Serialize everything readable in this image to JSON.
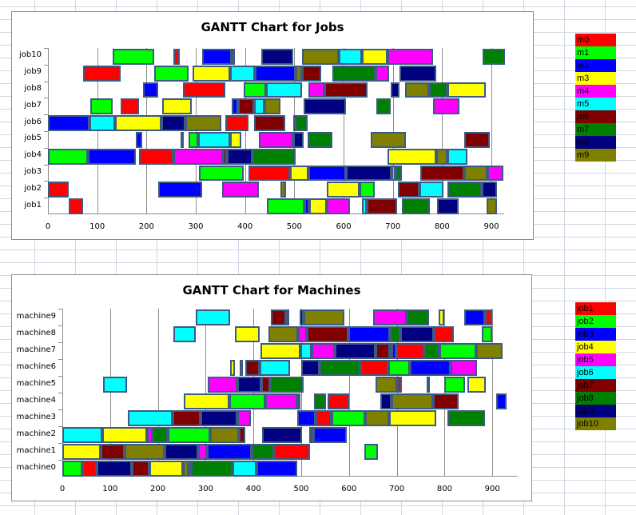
{
  "colors": {
    "c0": "#ff0000",
    "c1": "#00ff00",
    "c2": "#0000ff",
    "c3": "#ffff00",
    "c4": "#ff00ff",
    "c5": "#00ffff",
    "c6": "#800000",
    "c7": "#008000",
    "c8": "#000080",
    "c9": "#808000"
  },
  "legends": {
    "machines": [
      "m0",
      "m1",
      "m2",
      "m3",
      "m4",
      "m5",
      "m6",
      "m7",
      "m8",
      "m9"
    ],
    "jobs": [
      "job1",
      "job2",
      "job3",
      "job4",
      "job5",
      "job6",
      "job7",
      "job8",
      "job9",
      "job10"
    ]
  },
  "chart_data": [
    {
      "type": "gantt",
      "title": "GANTT Chart for Jobs",
      "xlabel": "",
      "ylabel": "",
      "xlim": [
        0,
        950
      ],
      "xticks": [
        0,
        100,
        200,
        300,
        400,
        500,
        600,
        700,
        800,
        900
      ],
      "categories": [
        "job1",
        "job2",
        "job3",
        "job4",
        "job5",
        "job6",
        "job7",
        "job8",
        "job9",
        "job10"
      ],
      "legend": [
        "m0",
        "m1",
        "m2",
        "m3",
        "m4",
        "m5",
        "m6",
        "m7",
        "m8",
        "m9"
      ],
      "grid": "vertical",
      "rows": {
        "job10": [
          [
            131,
            216,
            1
          ],
          [
            255,
            268,
            0
          ],
          [
            313,
            373,
            2
          ],
          [
            373,
            379,
            6
          ],
          [
            433,
            498,
            8
          ],
          [
            516,
            590,
            9
          ],
          [
            590,
            637,
            5
          ],
          [
            637,
            689,
            3
          ],
          [
            689,
            782,
            4
          ],
          [
            882,
            927,
            7
          ]
        ],
        "job9": [
          [
            71,
            148,
            0
          ],
          [
            216,
            285,
            1
          ],
          [
            293,
            370,
            3
          ],
          [
            370,
            420,
            5
          ],
          [
            420,
            503,
            2
          ],
          [
            503,
            516,
            9
          ],
          [
            516,
            555,
            6
          ],
          [
            577,
            665,
            7
          ],
          [
            665,
            692,
            4
          ],
          [
            713,
            788,
            8
          ]
        ],
        "job8": [
          [
            193,
            224,
            2
          ],
          [
            274,
            360,
            0
          ],
          [
            397,
            443,
            1
          ],
          [
            443,
            516,
            5
          ],
          [
            529,
            561,
            4
          ],
          [
            561,
            649,
            6
          ],
          [
            696,
            713,
            8
          ],
          [
            725,
            773,
            9
          ],
          [
            773,
            811,
            7
          ],
          [
            811,
            889,
            3
          ]
        ],
        "job7": [
          [
            86,
            131,
            1
          ],
          [
            148,
            185,
            0
          ],
          [
            232,
            292,
            3
          ],
          [
            373,
            386,
            2
          ],
          [
            386,
            418,
            6
          ],
          [
            418,
            439,
            5
          ],
          [
            439,
            472,
            9
          ],
          [
            519,
            605,
            8
          ],
          [
            666,
            696,
            7
          ],
          [
            782,
            835,
            4
          ]
        ],
        "job6": [
          [
            0,
            84,
            2
          ],
          [
            84,
            136,
            5
          ],
          [
            136,
            230,
            3
          ],
          [
            230,
            279,
            8
          ],
          [
            279,
            352,
            9
          ],
          [
            360,
            407,
            0
          ],
          [
            418,
            482,
            6
          ],
          [
            498,
            501,
            4
          ],
          [
            501,
            527,
            7
          ]
        ],
        "job5": [
          [
            178,
            191,
            2
          ],
          [
            269,
            272,
            0
          ],
          [
            285,
            305,
            1
          ],
          [
            305,
            370,
            5
          ],
          [
            370,
            392,
            3
          ],
          [
            428,
            498,
            4
          ],
          [
            498,
            519,
            8
          ],
          [
            527,
            577,
            7
          ],
          [
            655,
            726,
            9
          ],
          [
            845,
            897,
            6
          ]
        ],
        "job4": [
          [
            0,
            81,
            1
          ],
          [
            81,
            178,
            2
          ],
          [
            185,
            255,
            0
          ],
          [
            255,
            355,
            4
          ],
          [
            355,
            363,
            6
          ],
          [
            363,
            415,
            8
          ],
          [
            415,
            503,
            7
          ],
          [
            689,
            788,
            3
          ],
          [
            788,
            811,
            9
          ],
          [
            811,
            851,
            5
          ]
        ],
        "job3": [
          [
            306,
            397,
            1
          ],
          [
            407,
            491,
            0
          ],
          [
            491,
            529,
            3
          ],
          [
            529,
            605,
            2
          ],
          [
            605,
            697,
            8
          ],
          [
            697,
            705,
            5
          ],
          [
            705,
            718,
            7
          ],
          [
            756,
            845,
            6
          ],
          [
            845,
            892,
            9
          ],
          [
            892,
            924,
            4
          ]
        ],
        "job2": [
          [
            0,
            42,
            0
          ],
          [
            224,
            313,
            2
          ],
          [
            354,
            428,
            4
          ],
          [
            472,
            483,
            9
          ],
          [
            566,
            632,
            3
          ],
          [
            632,
            663,
            1
          ],
          [
            710,
            754,
            6
          ],
          [
            754,
            803,
            5
          ],
          [
            811,
            881,
            7
          ],
          [
            881,
            911,
            8
          ]
        ],
        "job1": [
          [
            42,
            71,
            0
          ],
          [
            444,
            521,
            1
          ],
          [
            521,
            530,
            2
          ],
          [
            530,
            566,
            3
          ],
          [
            566,
            613,
            4
          ],
          [
            637,
            647,
            5
          ],
          [
            647,
            709,
            6
          ],
          [
            718,
            775,
            7
          ],
          [
            790,
            834,
            8
          ],
          [
            890,
            911,
            9
          ]
        ]
      }
    },
    {
      "type": "gantt",
      "title": "GANTT Chart for Machines",
      "xlabel": "",
      "ylabel": "",
      "xlim": [
        0,
        950
      ],
      "xticks": [
        0,
        100,
        200,
        300,
        400,
        500,
        600,
        700,
        800,
        900
      ],
      "categories": [
        "machine0",
        "machine1",
        "machine2",
        "machine3",
        "machine4",
        "machine5",
        "machine6",
        "machine7",
        "machine8",
        "machine9"
      ],
      "legend": [
        "job1",
        "job2",
        "job3",
        "job4",
        "job5",
        "job6",
        "job7",
        "job8",
        "job9",
        "job10"
      ],
      "grid": "vertical",
      "rows": {
        "machine9": [
          [
            280,
            351,
            5
          ],
          [
            437,
            468,
            6
          ],
          [
            468,
            474,
            1
          ],
          [
            497,
            505,
            8
          ],
          [
            505,
            590,
            9
          ],
          [
            650,
            720,
            4
          ],
          [
            720,
            767,
            7
          ],
          [
            787,
            800,
            3
          ],
          [
            841,
            885,
            2
          ],
          [
            885,
            900,
            0
          ]
        ],
        "machine8": [
          [
            232,
            279,
            5
          ],
          [
            362,
            413,
            3
          ],
          [
            431,
            493,
            9
          ],
          [
            493,
            512,
            4
          ],
          [
            512,
            599,
            6
          ],
          [
            599,
            685,
            2
          ],
          [
            685,
            707,
            7
          ],
          [
            707,
            778,
            8
          ],
          [
            778,
            820,
            0
          ],
          [
            878,
            900,
            1
          ]
        ],
        "machine7": [
          [
            415,
            499,
            3
          ],
          [
            499,
            522,
            5
          ],
          [
            522,
            570,
            4
          ],
          [
            570,
            656,
            8
          ],
          [
            656,
            686,
            6
          ],
          [
            686,
            689,
            5
          ],
          [
            689,
            699,
            2
          ],
          [
            699,
            757,
            0
          ],
          [
            757,
            790,
            7
          ],
          [
            790,
            866,
            1
          ],
          [
            866,
            922,
            9
          ]
        ],
        "machine6": [
          [
            352,
            361,
            3
          ],
          [
            372,
            376,
            9
          ],
          [
            383,
            413,
            6
          ],
          [
            413,
            476,
            5
          ],
          [
            500,
            538,
            8
          ],
          [
            538,
            623,
            7
          ],
          [
            623,
            683,
            0
          ],
          [
            683,
            727,
            1
          ],
          [
            727,
            813,
            2
          ],
          [
            813,
            868,
            4
          ]
        ],
        "machine5": [
          [
            85,
            135,
            5
          ],
          [
            305,
            366,
            4
          ],
          [
            366,
            416,
            8
          ],
          [
            416,
            434,
            6
          ],
          [
            434,
            505,
            7
          ],
          [
            655,
            700,
            9
          ],
          [
            700,
            710,
            0
          ],
          [
            762,
            768,
            2
          ],
          [
            800,
            842,
            1
          ],
          [
            847,
            887,
            3
          ]
        ],
        "machine4": [
          [
            254,
            350,
            3
          ],
          [
            350,
            424,
            1
          ],
          [
            424,
            492,
            4
          ],
          [
            492,
            496,
            5
          ],
          [
            526,
            552,
            7
          ],
          [
            555,
            600,
            0
          ],
          [
            666,
            689,
            8
          ],
          [
            689,
            776,
            9
          ],
          [
            776,
            829,
            6
          ],
          [
            908,
            930,
            2
          ]
        ],
        "machine3": [
          [
            137,
            230,
            5
          ],
          [
            230,
            289,
            6
          ],
          [
            289,
            366,
            8
          ],
          [
            366,
            395,
            4
          ],
          [
            492,
            530,
            2
          ],
          [
            530,
            564,
            0
          ],
          [
            564,
            633,
            1
          ],
          [
            633,
            684,
            9
          ],
          [
            684,
            782,
            3
          ],
          [
            806,
            884,
            7
          ]
        ],
        "machine2": [
          [
            0,
            84,
            5
          ],
          [
            84,
            178,
            3
          ],
          [
            178,
            189,
            4
          ],
          [
            189,
            220,
            7
          ],
          [
            220,
            310,
            1
          ],
          [
            310,
            370,
            9
          ],
          [
            370,
            383,
            6
          ],
          [
            418,
            502,
            8
          ],
          [
            516,
            525,
            0
          ],
          [
            525,
            595,
            2
          ]
        ],
        "machine1": [
          [
            0,
            80,
            3
          ],
          [
            80,
            130,
            6
          ],
          [
            130,
            214,
            9
          ],
          [
            214,
            284,
            8
          ],
          [
            284,
            303,
            4
          ],
          [
            303,
            396,
            2
          ],
          [
            396,
            443,
            7
          ],
          [
            443,
            518,
            0
          ],
          [
            632,
            660,
            1
          ]
        ],
        "machine0": [
          [
            0,
            42,
            1
          ],
          [
            42,
            72,
            0
          ],
          [
            72,
            146,
            8
          ],
          [
            146,
            183,
            6
          ],
          [
            183,
            253,
            3
          ],
          [
            253,
            264,
            9
          ],
          [
            264,
            270,
            4
          ],
          [
            270,
            357,
            7
          ],
          [
            357,
            406,
            5
          ],
          [
            406,
            492,
            2
          ]
        ]
      }
    }
  ]
}
